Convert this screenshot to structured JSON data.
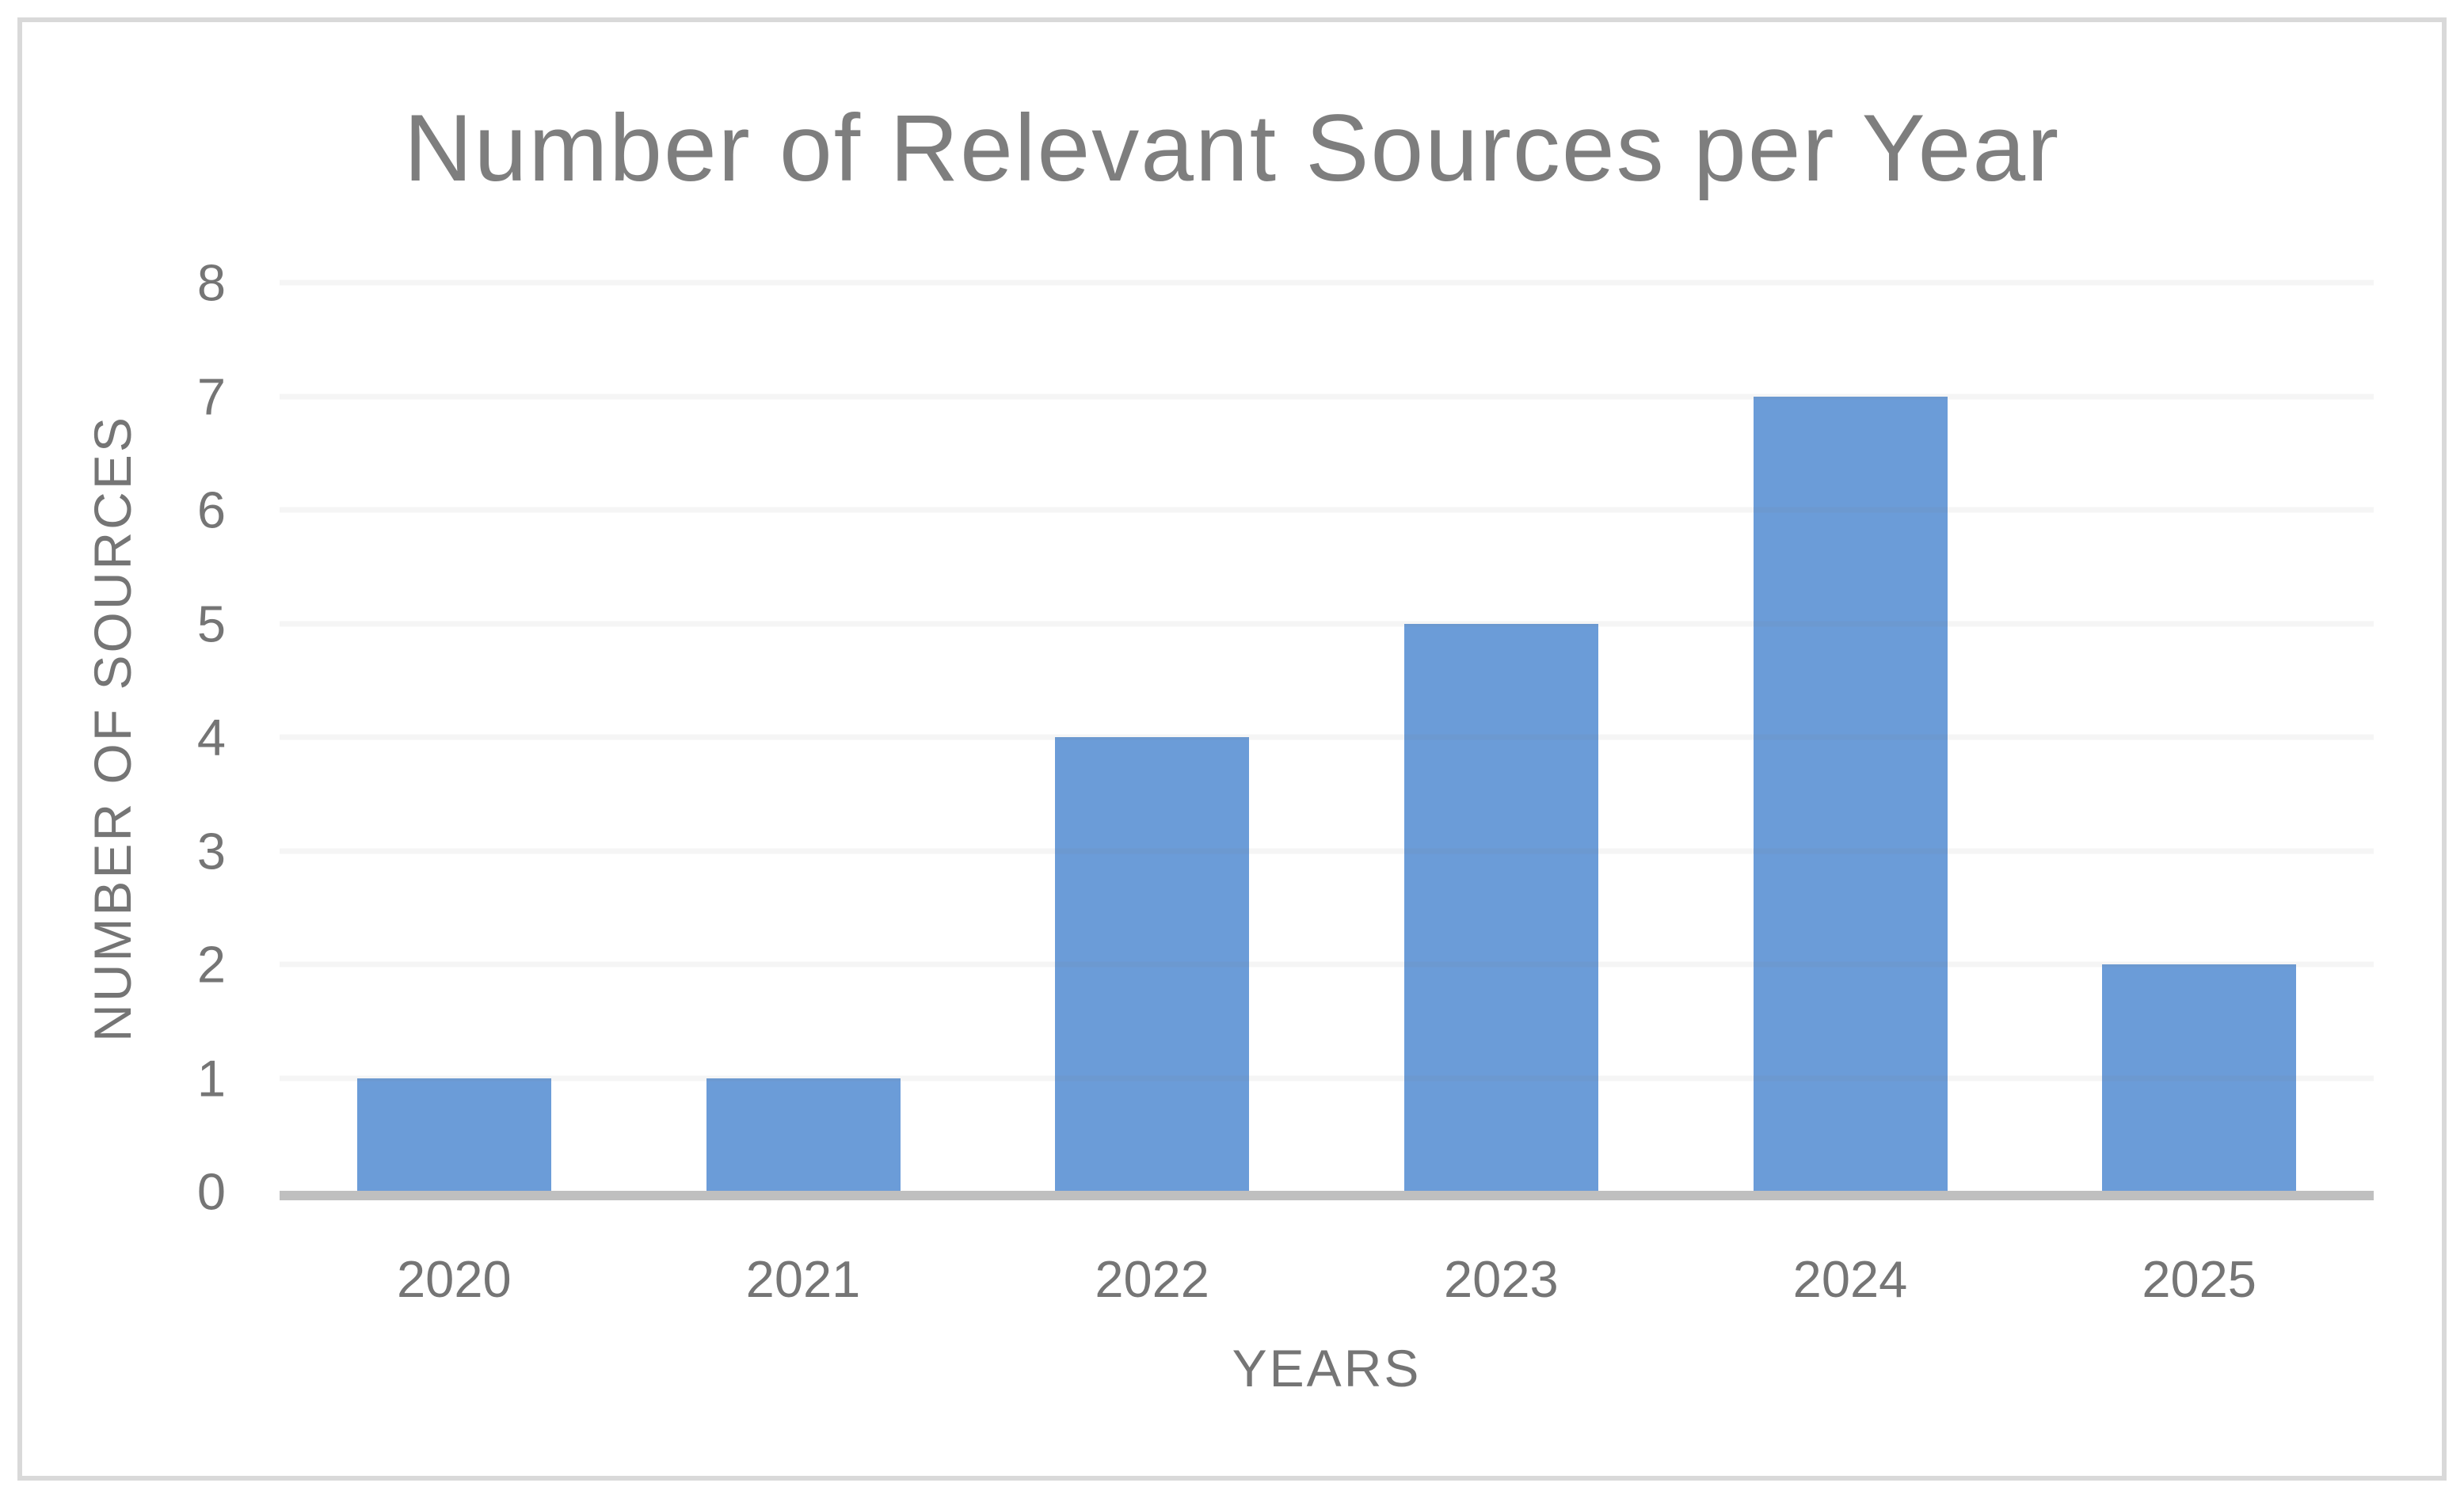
{
  "chart_data": {
    "type": "bar",
    "title": "Number of Relevant Sources per Year",
    "categories": [
      "2020",
      "2021",
      "2022",
      "2023",
      "2024",
      "2025"
    ],
    "values": [
      1,
      1,
      4,
      5,
      7,
      2
    ],
    "xlabel": "YEARS",
    "ylabel": "NUMBER OF SOURCES",
    "ylim": [
      0,
      8
    ],
    "yticks": [
      0,
      1,
      2,
      3,
      4,
      5,
      6,
      7,
      8
    ],
    "grid": true,
    "legend": false,
    "colors": {
      "bar": "#6B9CD8",
      "title_text": "#7E7E7E",
      "axis_text": "#757575",
      "gridline": "#F2F2F2",
      "axis_line": "#BFBFBF",
      "chart_border": "#D9D9D9",
      "background": "#FFFFFF"
    }
  }
}
